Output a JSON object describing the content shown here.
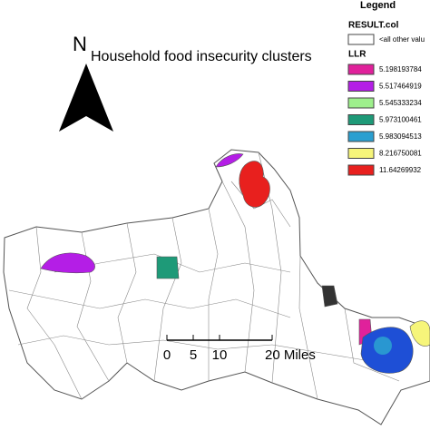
{
  "north_label": "N",
  "title": "Household food insecurity clusters",
  "legend": {
    "heading": "Legend",
    "field": "RESULT.col",
    "other": {
      "label": "<all other valu",
      "color": "#ffffff"
    },
    "group": "LLR",
    "entries": [
      {
        "label": "5.198193784",
        "color": "#e0219b"
      },
      {
        "label": "5.517464919",
        "color": "#b41ee6"
      },
      {
        "label": "5.545333234",
        "color": "#9ef08c"
      },
      {
        "label": "5.973100461",
        "color": "#1e9a78"
      },
      {
        "label": "5.983094513",
        "color": "#2a9fd0"
      },
      {
        "label": "8.216750081",
        "color": "#f6f57a"
      },
      {
        "label": "11.64269932",
        "color": "#e8201e"
      }
    ]
  },
  "scale": {
    "ticks": [
      "0",
      "5",
      "10",
      "20 Miles"
    ]
  }
}
